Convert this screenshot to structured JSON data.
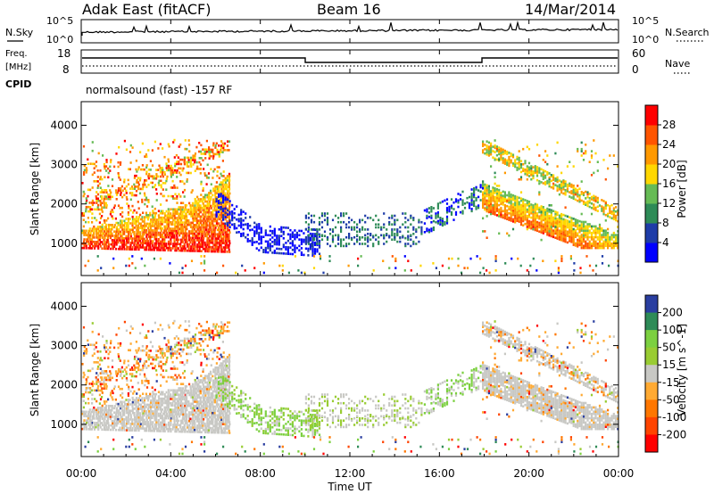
{
  "header": {
    "station": "Adak East (fitACF)",
    "beam": "Beam 16",
    "date": "14/Mar/2014"
  },
  "noise_panel": {
    "left_label": "N.Sky",
    "right_label": "N.Search",
    "left_ticks": [
      "10^5",
      "10^0"
    ],
    "right_ticks": [
      "10^5",
      "10^0"
    ]
  },
  "freq_panel": {
    "left_label_line1": "Freq.",
    "left_label_line2": "[MHz]",
    "left_ticks": [
      "18",
      "8"
    ],
    "right_label": "Nave",
    "right_ticks": [
      "60",
      "0"
    ],
    "cpid_label": "CPID",
    "cpid_text": "normalsound (fast) -157 RF"
  },
  "chart_data": [
    {
      "type": "heatmap",
      "name": "power",
      "ylabel": "Slant Range [km]",
      "ylim": [
        180,
        4600
      ],
      "yticks": [
        1000,
        2000,
        3000,
        4000
      ],
      "colorbar_label": "Power [dB]",
      "colorbar_ticks": [
        "4",
        "8",
        "12",
        "16",
        "20",
        "24",
        "28"
      ],
      "colorbar_range": [
        0,
        32
      ],
      "colors": [
        "#0000ff",
        "#1e3ca8",
        "#2e8b57",
        "#66bb55",
        "#ffd700",
        "#ff9900",
        "#ff5500",
        "#ff0000"
      ]
    },
    {
      "type": "heatmap",
      "name": "velocity",
      "ylabel": "Slant Range [km]",
      "ylim": [
        180,
        4600
      ],
      "yticks": [
        1000,
        2000,
        3000,
        4000
      ],
      "colorbar_label": "Velocity [m s^-1]",
      "colorbar_ticks": [
        "200",
        "100",
        "50",
        "15",
        "-15",
        "-50",
        "-100",
        "-200"
      ],
      "colors": [
        "#2a3ea0",
        "#2e8b57",
        "#7cd040",
        "#99cc33",
        "#c8c8c4",
        "#ffaa33",
        "#ff7700",
        "#ff4400",
        "#ff0000"
      ]
    }
  ],
  "x_axis": {
    "label": "Time UT",
    "ticks": [
      "00:00",
      "04:00",
      "08:00",
      "12:00",
      "16:00",
      "20:00",
      "00:00"
    ]
  }
}
